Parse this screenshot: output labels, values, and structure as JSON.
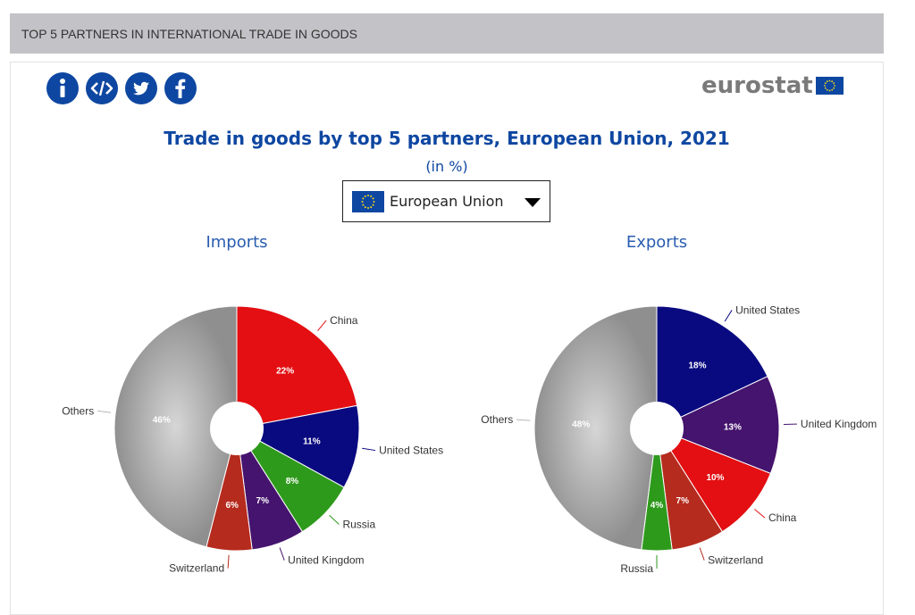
{
  "header": {
    "title": "TOP 5 PARTNERS IN INTERNATIONAL TRADE IN GOODS"
  },
  "share_buttons": [
    {
      "icon": "info-icon"
    },
    {
      "icon": "embed-code-icon"
    },
    {
      "icon": "twitter-icon"
    },
    {
      "icon": "facebook-icon"
    }
  ],
  "logo": {
    "text": "eurostat"
  },
  "chart": {
    "title": "Trade in goods by top 5 partners, European Union, 2021",
    "subtitle": "(in %)"
  },
  "selector": {
    "value": "European Union"
  },
  "colors": {
    "brand": "#0e47a1",
    "China": "#e30f12",
    "United States": "#0a0a80",
    "Russia": "#2e9a1c",
    "United Kingdom": "#45146e",
    "Switzerland": "#b52b1e",
    "Others": "#a9a9a9"
  },
  "chart_data": [
    {
      "type": "pie",
      "title": "Imports",
      "labels": [
        "China",
        "United States",
        "Russia",
        "United Kingdom",
        "Switzerland",
        "Others"
      ],
      "values": [
        22,
        11,
        8,
        7,
        6,
        46
      ]
    },
    {
      "type": "pie",
      "title": "Exports",
      "labels": [
        "United States",
        "United Kingdom",
        "China",
        "Switzerland",
        "Russia",
        "Others"
      ],
      "values": [
        18,
        13,
        10,
        7,
        4,
        48
      ]
    }
  ]
}
